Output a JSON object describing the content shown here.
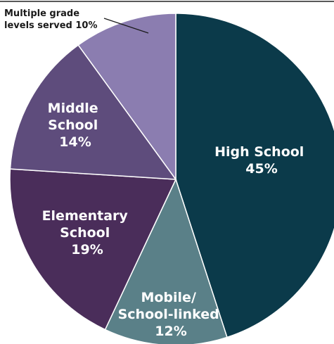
{
  "chart_data": {
    "type": "pie",
    "title": "",
    "slices": [
      {
        "name": "High School",
        "value": 45,
        "display": "45%",
        "color": "#0b3a4a"
      },
      {
        "name": "Mobile/ School-linked",
        "value": 12,
        "display": "12%",
        "color": "#5a8088"
      },
      {
        "name": "Elementary School",
        "value": 19,
        "display": "19%",
        "color": "#4a2d5a"
      },
      {
        "name": "Middle School",
        "value": 14,
        "display": "14%",
        "color": "#5e4c7c"
      },
      {
        "name": "Multiple grade levels served",
        "value": 10,
        "display": "10%",
        "color": "#8b7db0"
      }
    ],
    "labels": {
      "high_school": [
        "High School",
        "45%"
      ],
      "mobile": [
        "Mobile/",
        "School-linked",
        "12%"
      ],
      "elementary": [
        "Elementary",
        "School",
        "19%"
      ],
      "middle": [
        "Middle",
        "School",
        "14%"
      ],
      "multiple": [
        "Multiple grade",
        "levels served 10%"
      ]
    }
  }
}
